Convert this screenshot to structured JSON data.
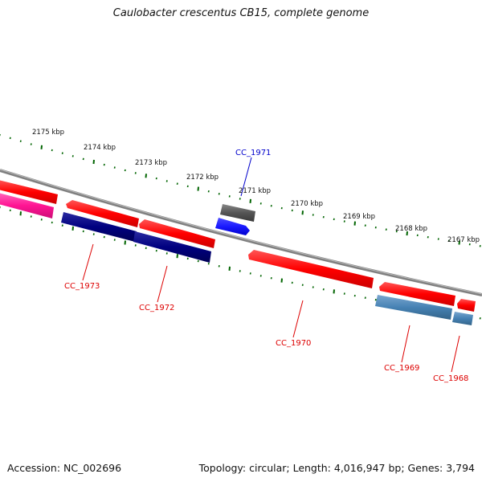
{
  "title": "Caulobacter crescentus CB15, complete genome",
  "accession": "Accession: NC_002696",
  "summary": "Topology: circular; Length: 4,016,947 bp; Genes: 3,794",
  "ruler_labels": [
    {
      "text": "2175 kbp"
    },
    {
      "text": "2174 kbp"
    },
    {
      "text": "2173 kbp"
    },
    {
      "text": "2172 kbp"
    },
    {
      "text": "2171 kbp"
    },
    {
      "text": "2170 kbp"
    },
    {
      "text": "2169 kbp"
    },
    {
      "text": "2168 kbp"
    },
    {
      "text": "2167 kbp"
    }
  ],
  "gene_labels": [
    {
      "text": "CC_1971",
      "color": "#0000cc"
    },
    {
      "text": "CC_1973",
      "color": "#dd0000"
    },
    {
      "text": "CC_1972",
      "color": "#dd0000"
    },
    {
      "text": "CC_1970",
      "color": "#dd0000"
    },
    {
      "text": "CC_1969",
      "color": "#dd0000"
    },
    {
      "text": "CC_1968",
      "color": "#dd0000"
    }
  ],
  "colors": {
    "cds": "#ff0000",
    "gene_dark_blue": "#000080",
    "gene_blue": "#1a1aff",
    "gene_steel_blue": "#4682b4",
    "gene_pink": "#ff1493",
    "gene_gray": "#555555",
    "backbone": "#808080",
    "ruler": "#006400"
  }
}
